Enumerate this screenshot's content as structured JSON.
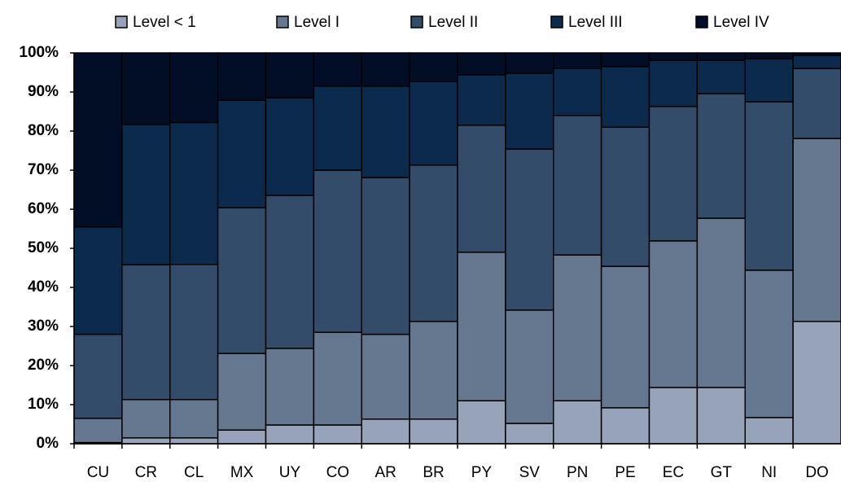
{
  "chart_data": {
    "type": "stacked_bar_100",
    "categories": [
      "CU",
      "CR",
      "CL",
      "MX",
      "UY",
      "CO",
      "AR",
      "BR",
      "PY",
      "SV",
      "PN",
      "PE",
      "EC",
      "GT",
      "NI",
      "DO"
    ],
    "series": [
      {
        "name": "Level < 1",
        "color": "#97a3b8",
        "values": [
          0.3,
          1.5,
          1.5,
          3.5,
          4.8,
          4.8,
          6.3,
          6.3,
          11,
          5.2,
          11,
          9.2,
          14.4,
          14.4,
          6.7,
          31.3
        ]
      },
      {
        "name": "Level I",
        "color": "#66788f",
        "values": [
          6.2,
          9.8,
          9.8,
          19.6,
          19.6,
          23.7,
          21.7,
          25,
          38,
          29,
          37.3,
          36.2,
          37.5,
          43.3,
          37.7,
          46.8
        ]
      },
      {
        "name": "Level II",
        "color": "#324c6a",
        "values": [
          21.5,
          34.5,
          34.6,
          37.3,
          39.1,
          41.5,
          40.1,
          40,
          32.5,
          41.2,
          35.7,
          35.6,
          34.4,
          31.9,
          43.1,
          17.9
        ]
      },
      {
        "name": "Level III",
        "color": "#0c2a4b",
        "values": [
          27.5,
          35.9,
          36.3,
          27.5,
          25,
          21.5,
          23.4,
          21.4,
          12.9,
          19.4,
          12,
          15.5,
          11.8,
          8.5,
          11,
          3.4
        ]
      },
      {
        "name": "Level IV",
        "color": "#020e26",
        "values": [
          44.5,
          18.3,
          17.8,
          12.1,
          11.5,
          8.5,
          8.5,
          7.3,
          5.6,
          5.2,
          4,
          3.5,
          1.9,
          1.9,
          1.5,
          0.6
        ]
      }
    ],
    "ylim": [
      0,
      100
    ],
    "yticks": [
      {
        "value": 0,
        "label": "0%"
      },
      {
        "value": 10,
        "label": "10%"
      },
      {
        "value": 20,
        "label": "20%"
      },
      {
        "value": 30,
        "label": "30%"
      },
      {
        "value": 40,
        "label": "40%"
      },
      {
        "value": 50,
        "label": "50%"
      },
      {
        "value": 60,
        "label": "60%"
      },
      {
        "value": 70,
        "label": "70%"
      },
      {
        "value": 80,
        "label": "80%"
      },
      {
        "value": 90,
        "label": "90%"
      },
      {
        "value": 100,
        "label": "100%"
      }
    ],
    "legend": "top"
  }
}
